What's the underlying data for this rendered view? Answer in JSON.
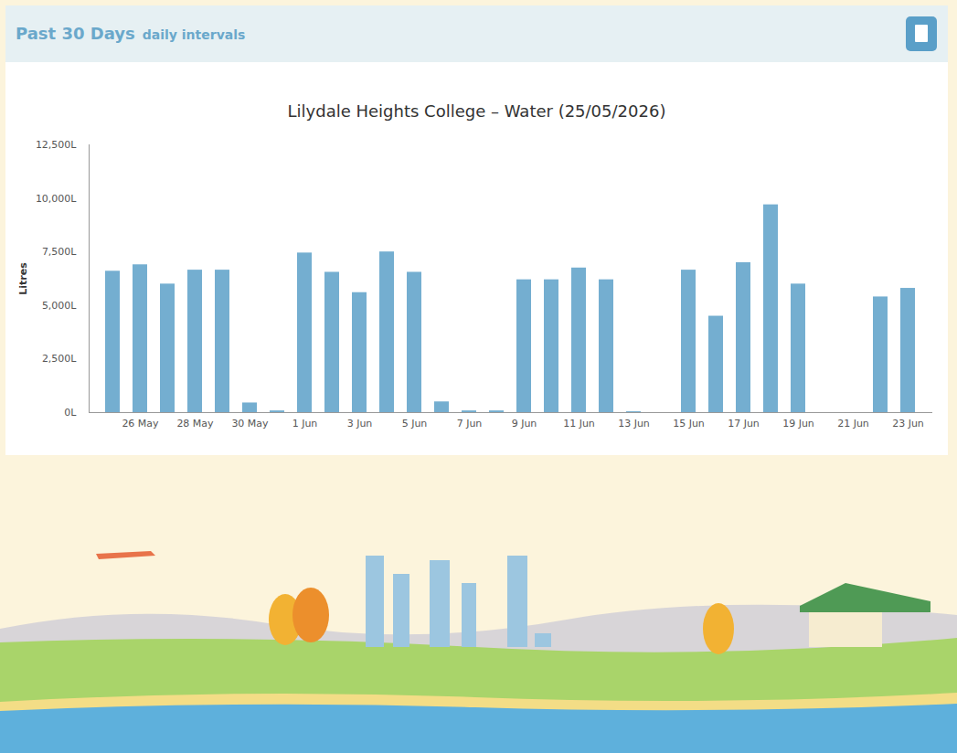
{
  "header": {
    "title": "Past 30 Days",
    "subtitle": "daily intervals"
  },
  "chart_data": {
    "type": "bar",
    "title": "Lilydale Heights College – Water (25/05/2026)",
    "y_label": "Litres",
    "categories": [
      null,
      "26 May",
      null,
      "28 May",
      null,
      "30 May",
      null,
      "1 Jun",
      null,
      "3 Jun",
      null,
      "5 Jun",
      null,
      "7 Jun",
      null,
      "9 Jun",
      null,
      "11 Jun",
      null,
      "13 Jun",
      null,
      "15 Jun",
      null,
      "17 Jun",
      null,
      "19 Jun",
      null,
      "21 Jun",
      null,
      "23 Jun"
    ],
    "values": [
      6600,
      6900,
      6000,
      6650,
      6650,
      450,
      80,
      7450,
      6550,
      5600,
      7500,
      6550,
      500,
      80,
      80,
      6200,
      6200,
      6750,
      6200,
      40,
      0,
      6650,
      4500,
      7000,
      9700,
      6000,
      0,
      0,
      5400,
      5800
    ],
    "color": "#74aed0",
    "ylim": [
      0,
      12500
    ],
    "yticks": [
      {
        "value": 0,
        "label": "0L"
      },
      {
        "value": 2500,
        "label": "2,500L"
      },
      {
        "value": 5000,
        "label": "5,000L"
      },
      {
        "value": 7500,
        "label": "7,500L"
      },
      {
        "value": 10000,
        "label": "10,000L"
      },
      {
        "value": 12500,
        "label": "12,500L"
      }
    ],
    "grid": false
  }
}
